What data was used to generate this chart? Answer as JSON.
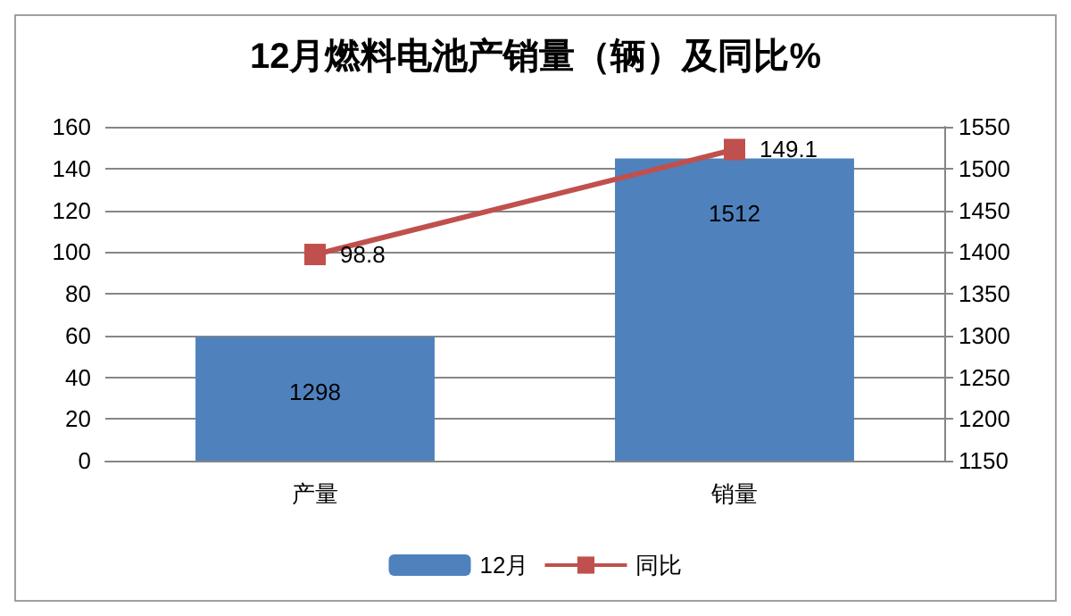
{
  "chart_data": {
    "type": "bar",
    "title": "12月燃料电池产销量（辆）及同比%",
    "categories": [
      "产量",
      "销量"
    ],
    "series": [
      {
        "name": "12月",
        "axis": "y2",
        "color": "#4f81bd",
        "values": [
          1298,
          1512
        ]
      },
      {
        "name": "同比",
        "type": "line",
        "axis": "y",
        "color": "#c0504d",
        "values": [
          98.8,
          149.1
        ]
      }
    ],
    "ylim": [
      0,
      160
    ],
    "yticks": [
      0,
      20,
      40,
      60,
      80,
      100,
      120,
      140,
      160
    ],
    "y2lim": [
      1150,
      1550
    ],
    "y2ticks": [
      1150,
      1200,
      1250,
      1300,
      1350,
      1400,
      1450,
      1500,
      1550
    ],
    "grid": "y",
    "legend": "bottom",
    "marker": "square",
    "line_style": "solid",
    "data_labels": true
  }
}
